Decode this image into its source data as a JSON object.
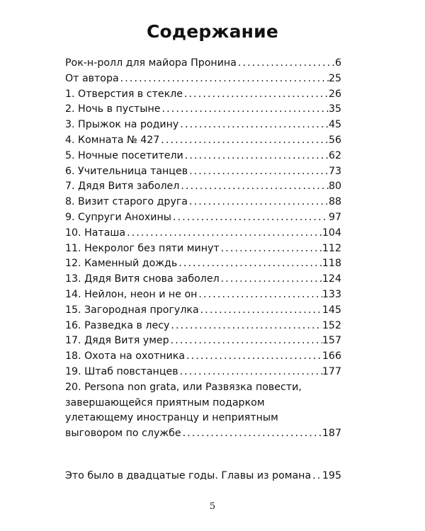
{
  "title": "Содержание",
  "entries": [
    {
      "title": "Рок-н-ролл для майора Пронина",
      "page": "6"
    },
    {
      "title": "От автора",
      "page": "25"
    },
    {
      "title": "1. Отверстия в стекле",
      "page": "26"
    },
    {
      "title": "2. Ночь в пустыне",
      "page": "35"
    },
    {
      "title": "3. Прыжок на родину",
      "page": "45"
    },
    {
      "title": "4. Комната № 427",
      "page": "56"
    },
    {
      "title": "5. Ночные посетители",
      "page": "62"
    },
    {
      "title": "6. Учительница танцев",
      "page": "73"
    },
    {
      "title": "7. Дядя Витя заболел",
      "page": "80"
    },
    {
      "title": "8. Визит старого друга",
      "page": "88"
    },
    {
      "title": "9. Супруги Анохины",
      "page": "97"
    },
    {
      "title": "10. Наташа",
      "page": "104"
    },
    {
      "title": "11. Некролог без пяти минут",
      "page": "112"
    },
    {
      "title": "12. Каменный дождь",
      "page": "118"
    },
    {
      "title": "13. Дядя Витя снова заболел",
      "page": "124"
    },
    {
      "title": "14. Нейлон, неон и не он",
      "page": "133"
    },
    {
      "title": "15. Загородная прогулка",
      "page": "145"
    },
    {
      "title": "16. Разведка в лесу",
      "page": "152"
    },
    {
      "title": "17. Дядя Витя умер",
      "page": "157"
    },
    {
      "title": "18. Охота на охотника",
      "page": "166"
    },
    {
      "title": "19. Штаб повстанцев",
      "page": "177"
    }
  ],
  "long_entry": {
    "lines": [
      "20. Persona non grata, или Развязка повести,",
      "завершающейся приятным подарком",
      "улетающему иностранцу и неприятным"
    ],
    "last_line": "выговором по службе",
    "page": "187"
  },
  "appendix": {
    "title": "Это было в двадцатые годы. Главы из романа",
    "page": "195"
  },
  "page_number": "5"
}
